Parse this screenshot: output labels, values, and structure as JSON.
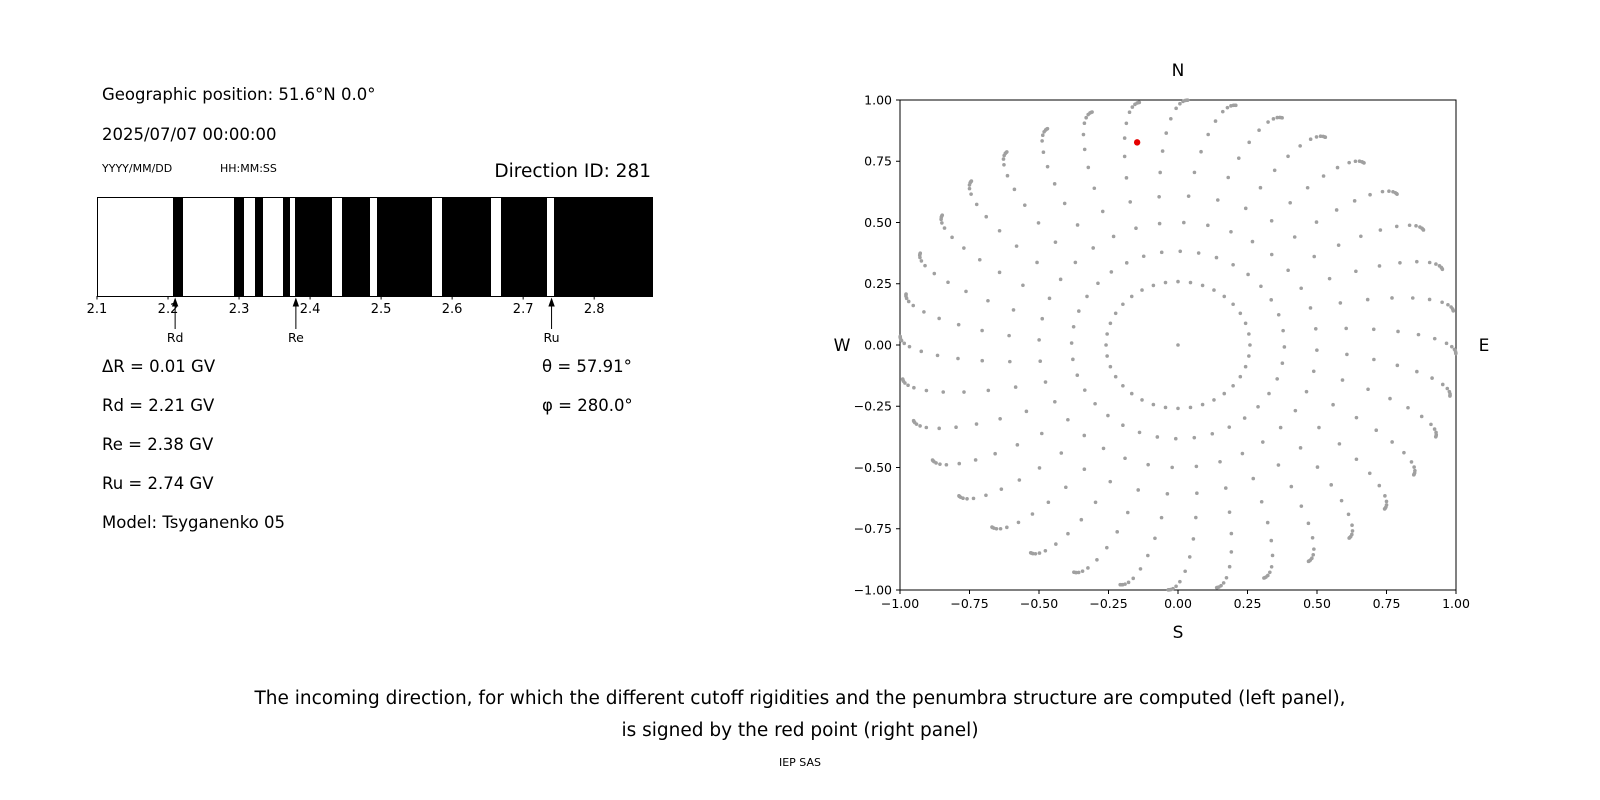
{
  "figure": {
    "background": "#ffffff"
  },
  "left_panel": {
    "geo_position": "Geographic position: 51.6°N 0.0°",
    "datetime": "2025/07/07 00:00:00",
    "date_format_label": "YYYY/MM/DD",
    "time_format_label": "HH:MM:SS",
    "direction_id": "Direction ID: 281",
    "delta_r": "ΔR = 0.01 GV",
    "theta": "θ = 57.91°",
    "rd": "Rd = 2.21 GV",
    "phi": "φ = 280.0°",
    "re": "Re = 2.38 GV",
    "ru": "Ru = 2.74 GV",
    "model": "Model: Tsyganenko 05"
  },
  "right_panel": {
    "north_label": "N",
    "south_label": "S",
    "east_label": "E",
    "west_label": "W"
  },
  "caption": {
    "line1": "The incoming direction, for which the different cutoff rigidities and the penumbra structure are computed (left panel),",
    "line2": "is signed by the red point (right panel)",
    "credit": "IEP SAS"
  },
  "chart_data": [
    {
      "type": "bar",
      "title": "penumbra structure",
      "x_range": [
        2.1,
        2.88
      ],
      "x_ticks": [
        "2.1",
        "2.2",
        "2.3",
        "2.4",
        "2.5",
        "2.6",
        "2.7",
        "2.8"
      ],
      "band_color": "#000000",
      "forbidden_bands_gv": [
        [
          2.206,
          2.22
        ],
        [
          2.291,
          2.306
        ],
        [
          2.321,
          2.332
        ],
        [
          2.36,
          2.37
        ],
        [
          2.377,
          2.43
        ],
        [
          2.444,
          2.483
        ],
        [
          2.493,
          2.57
        ],
        [
          2.584,
          2.654
        ],
        [
          2.668,
          2.732
        ],
        [
          2.742,
          2.88
        ]
      ],
      "markers": [
        {
          "label": "Rd",
          "x": 2.21
        },
        {
          "label": "Re",
          "x": 2.38
        },
        {
          "label": "Ru",
          "x": 2.74
        }
      ]
    },
    {
      "type": "scatter",
      "xlim": [
        -1,
        1
      ],
      "ylim": [
        -1,
        1
      ],
      "x_ticks": [
        "−1.00",
        "−0.75",
        "−0.50",
        "−0.25",
        "0.00",
        "0.25",
        "0.50",
        "0.75",
        "1.00"
      ],
      "y_ticks": [
        "1.00",
        "0.75",
        "0.50",
        "0.25",
        "0.00",
        "−0.25",
        "−0.50",
        "−0.75",
        "−1.00"
      ],
      "grid_dots": {
        "color": "#a0a0a0",
        "dot_radius": 1.8,
        "azimuth_start": 0,
        "azimuth_step": 10,
        "azimuth_count": 36,
        "zenith_deg": [
          15,
          22.5,
          30,
          37.5,
          45,
          52.5,
          60,
          67.5,
          75,
          80,
          84,
          87,
          89,
          90
        ],
        "projection": "r = sin(zenith)",
        "azimuth_drift_deg": 12,
        "center_dot": true
      },
      "red_point": {
        "x": -0.147,
        "y": 0.827,
        "color": "#e60000"
      }
    }
  ]
}
